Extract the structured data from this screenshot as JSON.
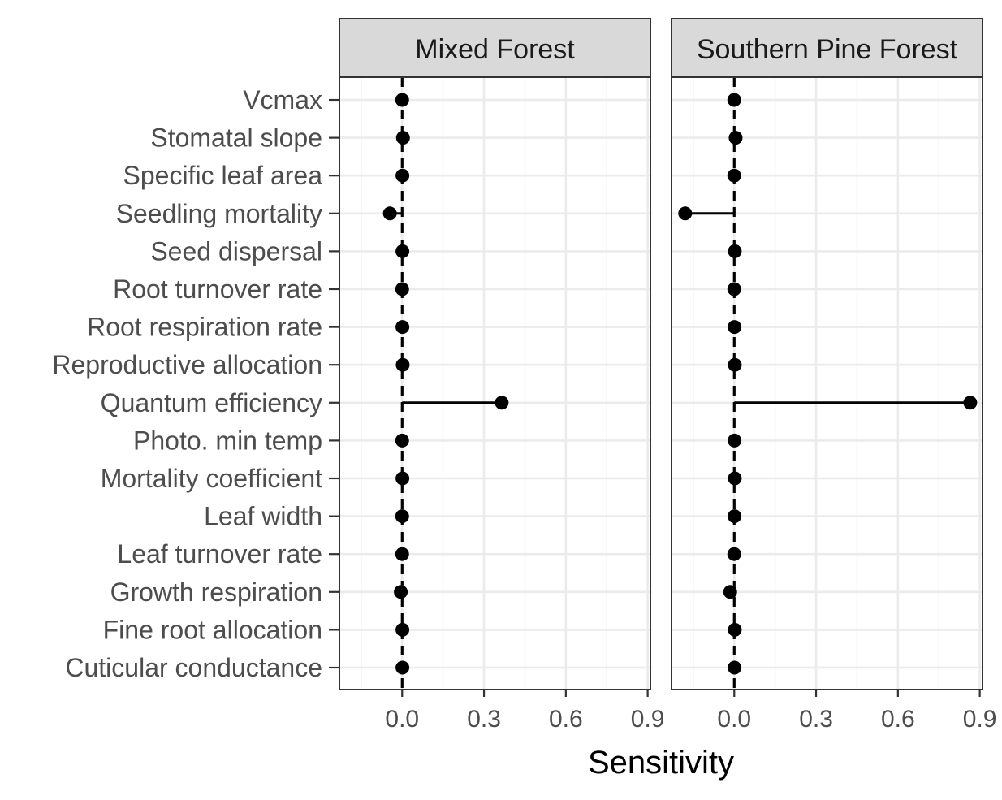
{
  "chart_data": {
    "type": "scatter",
    "subtype": "lollipop",
    "xlabel": "Sensitivity",
    "ylabel": "",
    "xlim": [
      -0.23,
      0.91
    ],
    "xticks": [
      "0.0",
      "0.3",
      "0.6",
      "0.9"
    ],
    "xtick_values": [
      0.0,
      0.3,
      0.6,
      0.9
    ],
    "reference_line": {
      "x": 0,
      "style": "dashed"
    },
    "grid": true,
    "legend": "none",
    "categories": [
      "Vcmax",
      "Stomatal slope",
      "Specific leaf area",
      "Seedling mortality",
      "Seed dispersal",
      "Root turnover rate",
      "Root respiration rate",
      "Reproductive allocation",
      "Quantum efficiency",
      "Photo. min temp",
      "Mortality coefficient",
      "Leaf width",
      "Leaf turnover rate",
      "Growth respiration",
      "Fine root allocation",
      "Cuticular conductance"
    ],
    "panels": [
      {
        "name": "Mixed Forest",
        "values": [
          0.0,
          0.003,
          0.001,
          -0.045,
          0.001,
          0.0,
          0.001,
          0.002,
          0.365,
          0.0,
          0.001,
          0.0,
          0.0,
          -0.005,
          0.001,
          0.001
        ]
      },
      {
        "name": "Southern Pine Forest",
        "values": [
          0.0,
          0.005,
          0.0,
          -0.18,
          0.002,
          0.0,
          0.001,
          0.002,
          0.865,
          0.001,
          0.002,
          0.001,
          0.0,
          -0.015,
          0.002,
          0.001
        ]
      }
    ]
  }
}
